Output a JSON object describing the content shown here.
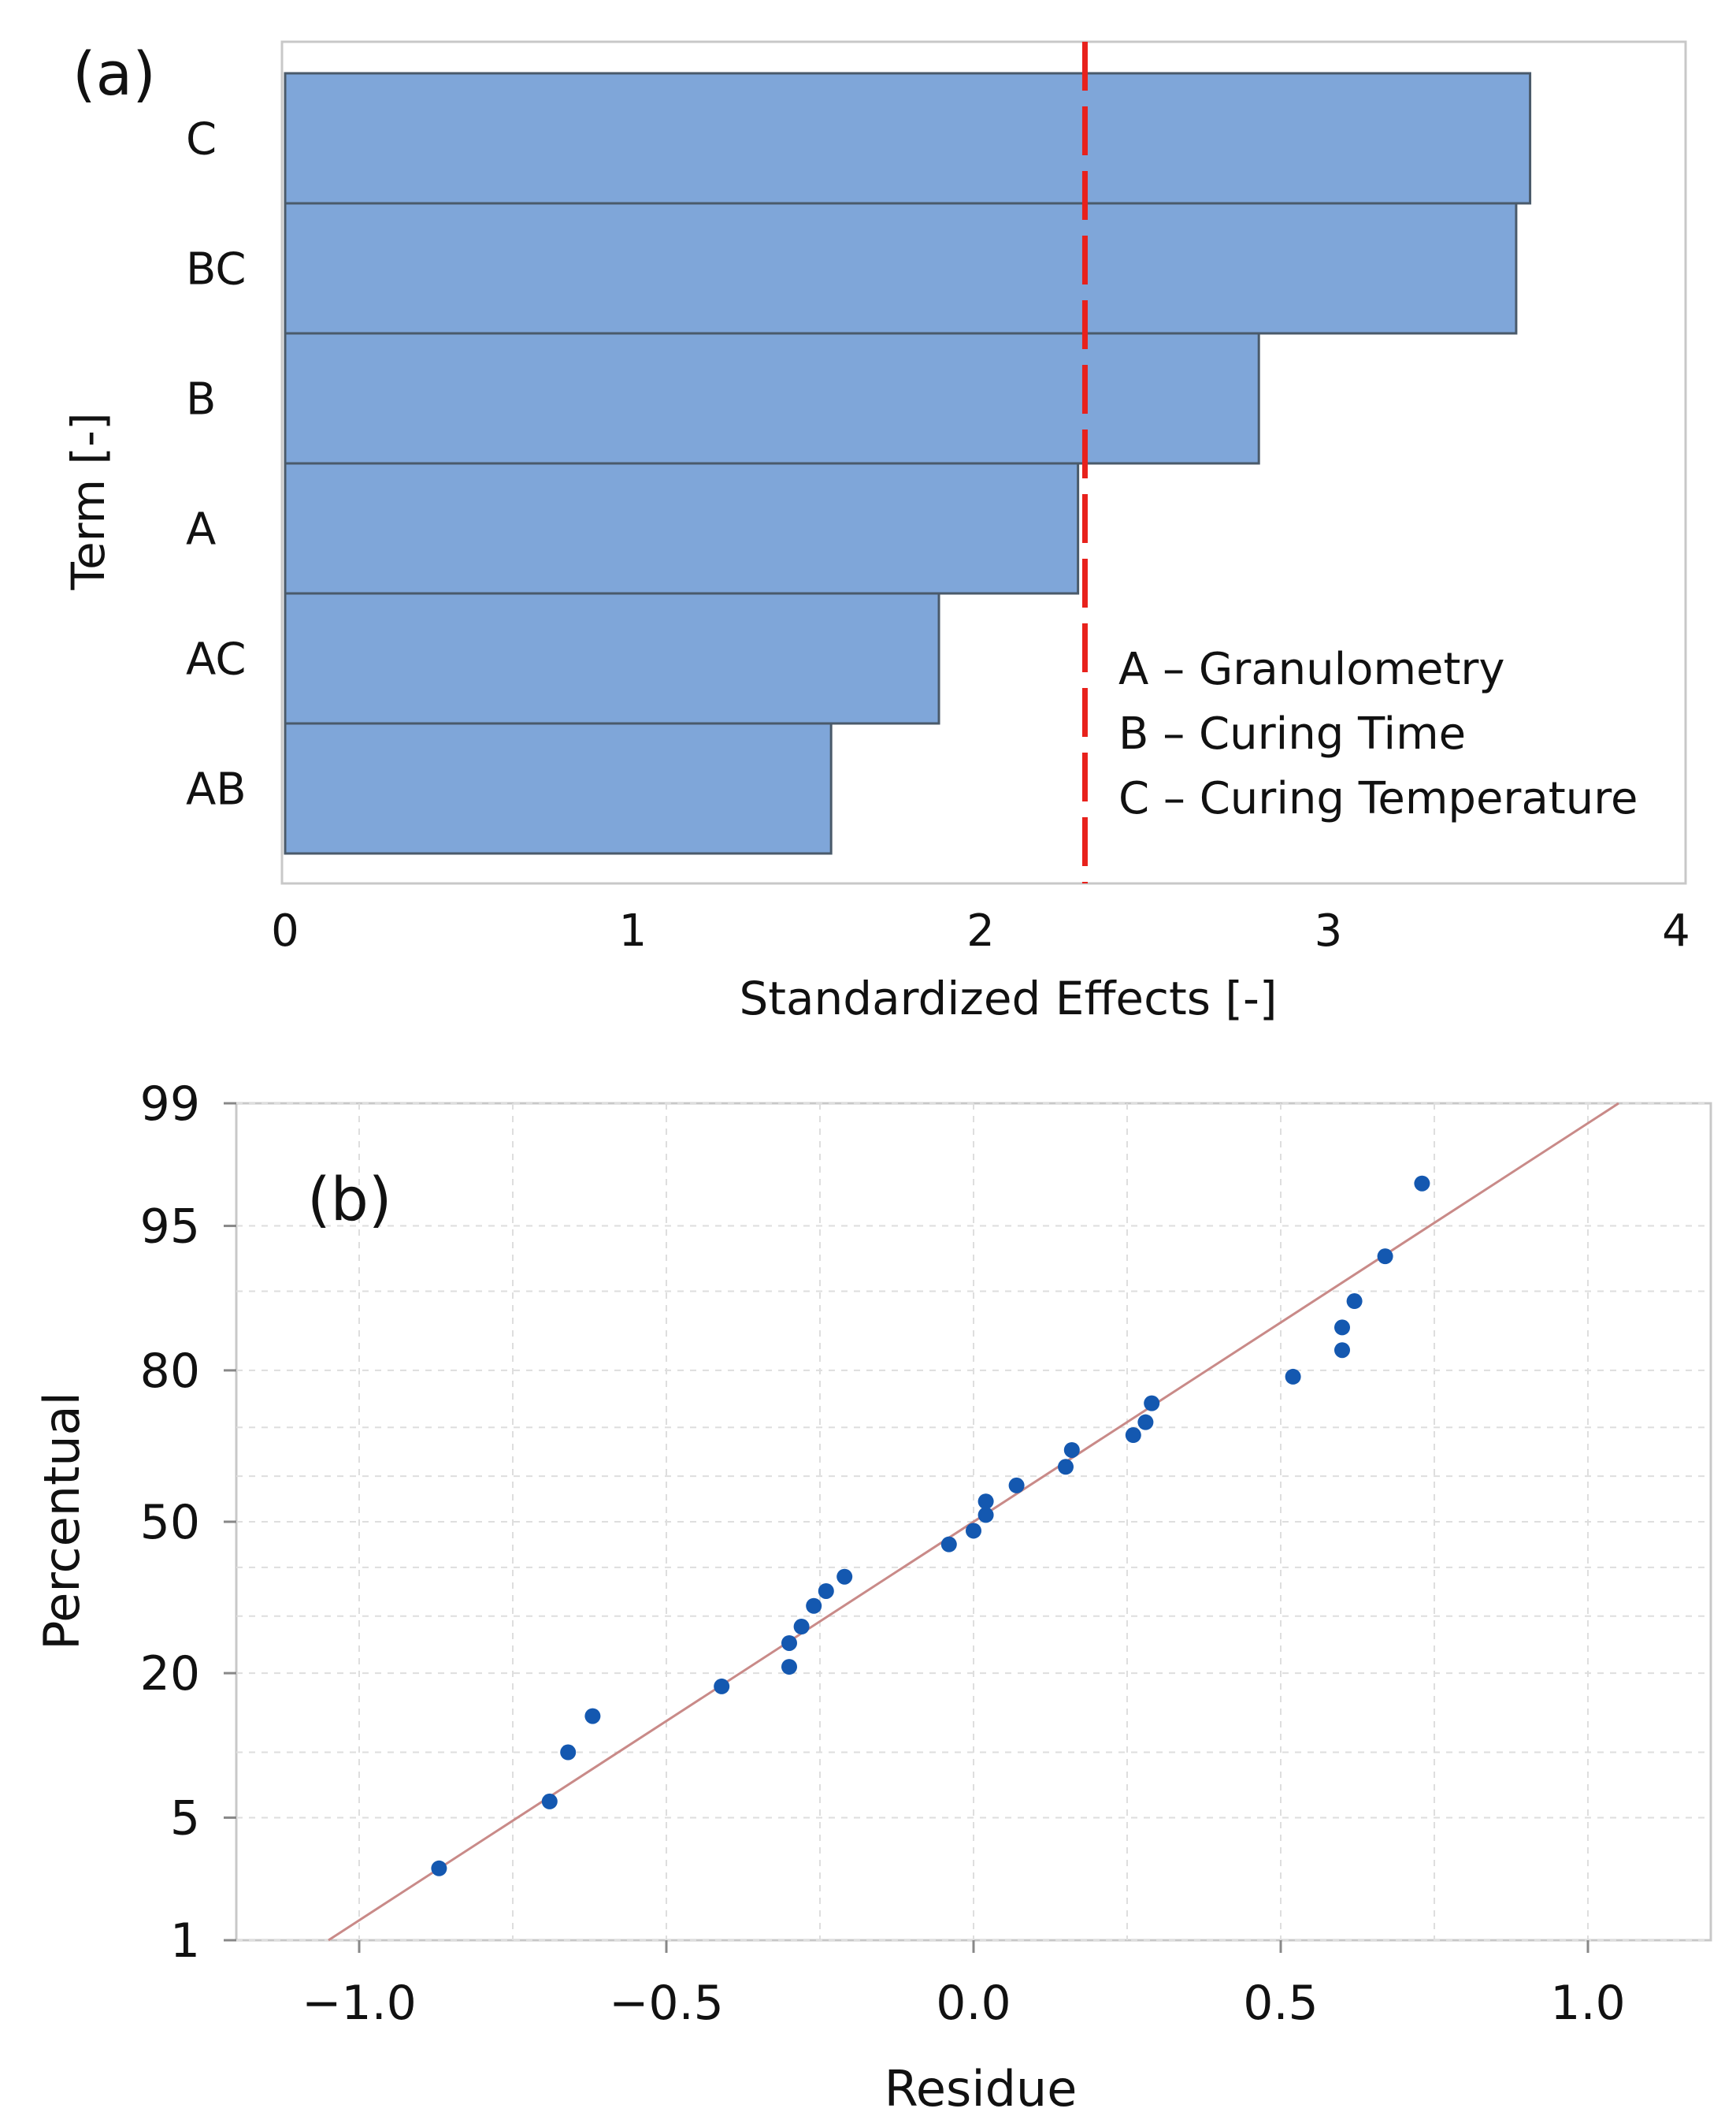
{
  "chart_data": [
    {
      "panel_label": "(a)",
      "type": "bar",
      "orientation": "horizontal",
      "categories": [
        "C",
        "BC",
        "B",
        "A",
        "AC",
        "AB"
      ],
      "values": [
        3.58,
        3.54,
        2.8,
        2.28,
        1.88,
        1.57
      ],
      "reference_line": 2.3,
      "xlabel": "Standardized Effects [-]",
      "ylabel": "Term [-]",
      "xlim": [
        0,
        4
      ],
      "xticks": [
        0,
        1,
        2,
        3,
        4
      ],
      "bar_color": "#7fa6d9",
      "bar_edge_color": "#4a5a6a",
      "reference_color": "#e8211c",
      "legend": [
        "A – Granulometry",
        "B – Curing Time",
        "C – Curing Temperature"
      ]
    },
    {
      "panel_label": "(b)",
      "type": "scatter",
      "xlabel": "Residue",
      "ylabel": "Percentual",
      "xlim": [
        -1.2,
        1.2
      ],
      "xticks": [
        "−1.0",
        "−0.5",
        "0.0",
        "0.5",
        "1.0"
      ],
      "xtick_values": [
        -1.0,
        -0.5,
        0.0,
        0.5,
        1.0
      ],
      "yticks": [
        1,
        5,
        20,
        50,
        80,
        95,
        99
      ],
      "y_minor_ticks": [
        10,
        30,
        40,
        60,
        70,
        90
      ],
      "point_color": "#1458b0",
      "fit_line_color": "#c98a88",
      "fit_line": [
        [
          -1.05,
          1
        ],
        [
          1.05,
          99
        ]
      ],
      "points": [
        [
          -0.87,
          2.7
        ],
        [
          -0.69,
          6.0
        ],
        [
          -0.66,
          10.0
        ],
        [
          -0.62,
          14.0
        ],
        [
          -0.41,
          18.0
        ],
        [
          -0.3,
          21.0
        ],
        [
          -0.3,
          25.0
        ],
        [
          -0.28,
          28.0
        ],
        [
          -0.26,
          32.0
        ],
        [
          -0.24,
          35.0
        ],
        [
          -0.21,
          38.0
        ],
        [
          -0.04,
          45.0
        ],
        [
          0.0,
          48.0
        ],
        [
          0.02,
          51.5
        ],
        [
          0.02,
          54.5
        ],
        [
          0.07,
          58.0
        ],
        [
          0.15,
          62.0
        ],
        [
          0.16,
          65.5
        ],
        [
          0.26,
          68.5
        ],
        [
          0.28,
          71.0
        ],
        [
          0.29,
          74.5
        ],
        [
          0.52,
          79.0
        ],
        [
          0.6,
          83.0
        ],
        [
          0.6,
          86.0
        ],
        [
          0.62,
          89.0
        ],
        [
          0.67,
          93.0
        ],
        [
          0.73,
          97.0
        ]
      ]
    }
  ]
}
